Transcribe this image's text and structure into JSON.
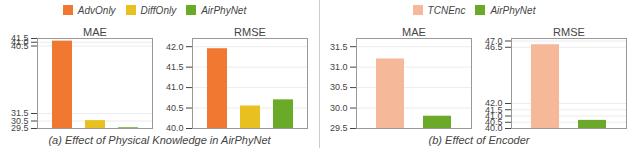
{
  "chart_data": [
    {
      "type": "bar",
      "caption": "(a) Effect of Physical Knowledge in AirPhyNet",
      "categories": [
        "AdvOnly",
        "DiffOnly",
        "AirPhyNet"
      ],
      "colors": [
        "#F07830",
        "#E8C020",
        "#6AAA28"
      ],
      "legend": "top",
      "tick_labels": "y",
      "grid": true,
      "subplots": [
        {
          "title": "MAE",
          "values": [
            41.15,
            30.55,
            29.6
          ],
          "ylim": [
            29.5,
            41.5
          ],
          "yticks": [
            29.5,
            30.5,
            31.5,
            40.5,
            {
              "value": 41.0,
              "label": "41.0"
            },
            41.5
          ]
        },
        {
          "title": "RMSE",
          "values": [
            41.95,
            40.55,
            40.7
          ],
          "ylim": [
            40.0,
            42.2
          ],
          "yticks": [
            {
              "value": 40.0,
              "label": "40.0"
            },
            40.5,
            {
              "value": 41.0,
              "label": "41.0"
            },
            41.5,
            {
              "value": 42.0,
              "label": "42.0"
            }
          ]
        }
      ]
    },
    {
      "type": "bar",
      "caption": "(b) Effect of Encoder",
      "categories": [
        "TCNEnc",
        "AirPhyNet"
      ],
      "colors": [
        "#F5B899",
        "#6AAA28"
      ],
      "legend": "top",
      "tick_labels": "y",
      "grid": true,
      "subplots": [
        {
          "title": "MAE",
          "values": [
            31.2,
            29.8
          ],
          "ylim": [
            29.5,
            31.7
          ],
          "yticks": [
            29.5,
            {
              "value": 30.0,
              "label": "30.0"
            },
            30.5,
            {
              "value": 31.0,
              "label": "31.0"
            },
            31.5
          ]
        },
        {
          "title": "RMSE",
          "values": [
            46.7,
            40.65
          ],
          "ylim": [
            40.0,
            47.2
          ],
          "yticks": [
            {
              "value": 40.0,
              "label": "40.0"
            },
            40.5,
            {
              "value": 41.0,
              "label": "41.0"
            },
            41.5,
            {
              "value": 42.0,
              "label": "42.0"
            },
            46.5,
            {
              "value": 47.0,
              "label": "47.0"
            }
          ]
        }
      ]
    }
  ]
}
